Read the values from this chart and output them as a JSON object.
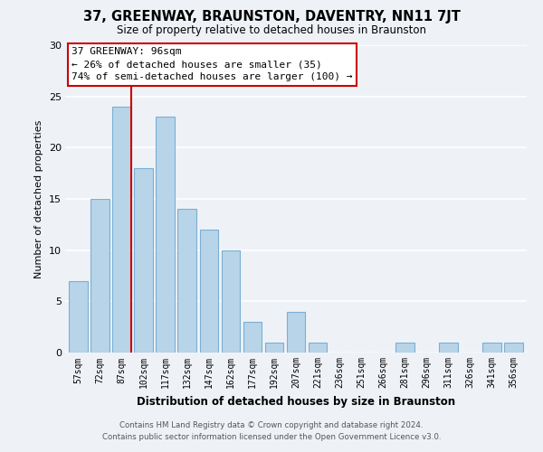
{
  "title": "37, GREENWAY, BRAUNSTON, DAVENTRY, NN11 7JT",
  "subtitle": "Size of property relative to detached houses in Braunston",
  "xlabel": "Distribution of detached houses by size in Braunston",
  "ylabel": "Number of detached properties",
  "bar_labels": [
    "57sqm",
    "72sqm",
    "87sqm",
    "102sqm",
    "117sqm",
    "132sqm",
    "147sqm",
    "162sqm",
    "177sqm",
    "192sqm",
    "207sqm",
    "221sqm",
    "236sqm",
    "251sqm",
    "266sqm",
    "281sqm",
    "296sqm",
    "311sqm",
    "326sqm",
    "341sqm",
    "356sqm"
  ],
  "bar_values": [
    7,
    15,
    24,
    18,
    23,
    14,
    12,
    10,
    3,
    1,
    4,
    1,
    0,
    0,
    0,
    1,
    0,
    1,
    0,
    1,
    1
  ],
  "bar_color": "#b8d4e8",
  "bar_edge_color": "#7bafd4",
  "vline_index": 2,
  "vline_color": "#cc0000",
  "ylim": [
    0,
    30
  ],
  "yticks": [
    0,
    5,
    10,
    15,
    20,
    25,
    30
  ],
  "annotation_title": "37 GREENWAY: 96sqm",
  "annotation_line1": "← 26% of detached houses are smaller (35)",
  "annotation_line2": "74% of semi-detached houses are larger (100) →",
  "annotation_box_color": "#ffffff",
  "annotation_box_edge_color": "#cc0000",
  "footer_line1": "Contains HM Land Registry data © Crown copyright and database right 2024.",
  "footer_line2": "Contains public sector information licensed under the Open Government Licence v3.0.",
  "background_color": "#eef2f7",
  "grid_color": "#ffffff"
}
